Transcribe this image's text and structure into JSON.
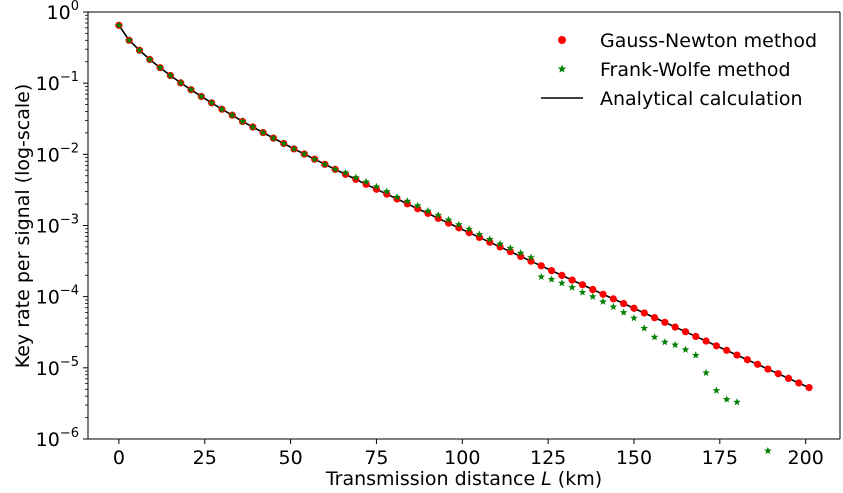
{
  "chart_data": {
    "type": "scatter",
    "xlabel": "Transmission distance L (km)",
    "xlabel_parts": {
      "before": "Transmission distance ",
      "italic": "L",
      "after": " (km)"
    },
    "ylabel": "Key rate per signal (log-scale)",
    "xlim": [
      -9,
      210
    ],
    "ylim": [
      1e-06,
      1
    ],
    "y_scale": "log",
    "x_ticks": [
      0,
      25,
      50,
      75,
      100,
      125,
      150,
      175,
      200
    ],
    "x_tick_labels": [
      "0",
      "25",
      "50",
      "75",
      "100",
      "125",
      "150",
      "175",
      "200"
    ],
    "y_ticks": [
      {
        "value": 1,
        "base": "10",
        "exp": "0"
      },
      {
        "value": 0.1,
        "base": "10",
        "exp": "−1"
      },
      {
        "value": 0.01,
        "base": "10",
        "exp": "−2"
      },
      {
        "value": 0.001,
        "base": "10",
        "exp": "−3"
      },
      {
        "value": 0.0001,
        "base": "10",
        "exp": "−4"
      },
      {
        "value": 1e-05,
        "base": "10",
        "exp": "−5"
      },
      {
        "value": 1e-06,
        "base": "10",
        "exp": "−6"
      }
    ],
    "grid": false,
    "legend_position": "top-right",
    "series": [
      {
        "name": "Gauss-Newton method",
        "marker": "circle",
        "color": "#ff0000",
        "x": [
          0,
          3,
          6,
          9,
          12,
          15,
          18,
          21,
          24,
          27,
          30,
          33,
          36,
          39,
          42,
          45,
          48,
          51,
          54,
          57,
          60,
          63,
          66,
          69,
          72,
          75,
          78,
          81,
          84,
          87,
          90,
          93,
          96,
          99,
          102,
          105,
          108,
          111,
          114,
          117,
          120,
          123,
          126,
          129,
          132,
          135,
          138,
          141,
          144,
          147,
          150,
          153,
          156,
          159,
          162,
          165,
          168,
          171,
          174,
          177,
          180,
          183,
          186,
          189,
          192,
          195,
          198,
          201
        ],
        "y": [
          0.65,
          0.4,
          0.29,
          0.215,
          0.165,
          0.128,
          0.101,
          0.081,
          0.065,
          0.053,
          0.043,
          0.0355,
          0.029,
          0.0242,
          0.0202,
          0.0169,
          0.0142,
          0.0119,
          0.0101,
          0.00854,
          0.00724,
          0.00615,
          0.00523,
          0.00445,
          0.00379,
          0.00323,
          0.00276,
          0.00236,
          0.00202,
          0.00172,
          0.00148,
          0.00126,
          0.00108,
          0.000927,
          0.000794,
          0.00068,
          0.000583,
          0.0005,
          0.000429,
          0.000368,
          0.000315,
          0.000271,
          0.000232,
          0.000199,
          0.000171,
          0.000147,
          0.000126,
          0.000108,
          9.31e-05,
          8e-05,
          6.87e-05,
          5.9e-05,
          5.07e-05,
          4.36e-05,
          3.74e-05,
          3.22e-05,
          2.76e-05,
          2.38e-05,
          2.04e-05,
          1.76e-05,
          1.51e-05,
          1.3e-05,
          1.12e-05,
          9.61e-06,
          8.27e-06,
          7.11e-06,
          6.12e-06,
          5.27e-06
        ]
      },
      {
        "name": "Frank-Wolfe method",
        "marker": "star",
        "color": "#008000",
        "x": [
          0,
          3,
          6,
          9,
          12,
          15,
          18,
          21,
          24,
          27,
          30,
          33,
          36,
          39,
          42,
          45,
          48,
          51,
          54,
          57,
          60,
          63,
          66,
          69,
          72,
          75,
          78,
          81,
          84,
          87,
          90,
          93,
          96,
          99,
          102,
          105,
          108,
          111,
          114,
          117,
          120,
          123,
          126,
          129,
          132,
          135,
          138,
          141,
          144,
          147,
          150,
          153,
          156,
          159,
          162,
          165,
          168,
          171,
          174,
          177,
          180,
          189
        ],
        "y": [
          0.65,
          0.4,
          0.29,
          0.215,
          0.165,
          0.128,
          0.101,
          0.081,
          0.065,
          0.053,
          0.043,
          0.0355,
          0.029,
          0.0242,
          0.0202,
          0.0169,
          0.0142,
          0.0119,
          0.0101,
          0.00854,
          0.00724,
          0.00615,
          0.0055,
          0.0047,
          0.0041,
          0.0035,
          0.003,
          0.0025,
          0.0022,
          0.0019,
          0.0016,
          0.0014,
          0.0012,
          0.00103,
          0.00089,
          0.00075,
          0.00064,
          0.00055,
          0.00048,
          0.00041,
          0.000355,
          0.00019,
          0.000175,
          0.000155,
          0.000135,
          0.000115,
          0.0001,
          8.5e-05,
          7.2e-05,
          6e-05,
          5e-05,
          3.6e-05,
          2.7e-05,
          2.3e-05,
          2.1e-05,
          1.8e-05,
          1.5e-05,
          8.5e-06,
          4.8e-06,
          3.6e-06,
          3.3e-06,
          6.8e-07
        ]
      },
      {
        "name": "Analytical calculation",
        "marker": "line",
        "color": "#000000",
        "x": [
          0,
          3,
          6,
          9,
          12,
          15,
          18,
          21,
          24,
          27,
          30,
          33,
          36,
          39,
          42,
          45,
          48,
          51,
          54,
          57,
          60,
          63,
          66,
          69,
          72,
          75,
          78,
          81,
          84,
          87,
          90,
          93,
          96,
          99,
          102,
          105,
          108,
          111,
          114,
          117,
          120,
          123,
          126,
          129,
          132,
          135,
          138,
          141,
          144,
          147,
          150,
          153,
          156,
          159,
          162,
          165,
          168,
          171,
          174,
          177,
          180,
          183,
          186,
          189,
          192,
          195,
          198,
          201
        ],
        "y": [
          0.65,
          0.4,
          0.29,
          0.215,
          0.165,
          0.128,
          0.101,
          0.081,
          0.065,
          0.053,
          0.043,
          0.0355,
          0.029,
          0.0242,
          0.0202,
          0.0169,
          0.0142,
          0.0119,
          0.0101,
          0.00854,
          0.00724,
          0.00615,
          0.00523,
          0.00445,
          0.00379,
          0.00323,
          0.00276,
          0.00236,
          0.00202,
          0.00172,
          0.00148,
          0.00126,
          0.00108,
          0.000927,
          0.000794,
          0.00068,
          0.000583,
          0.0005,
          0.000429,
          0.000368,
          0.000315,
          0.000271,
          0.000232,
          0.000199,
          0.000171,
          0.000147,
          0.000126,
          0.000108,
          9.31e-05,
          8e-05,
          6.87e-05,
          5.9e-05,
          5.07e-05,
          4.36e-05,
          3.74e-05,
          3.22e-05,
          2.76e-05,
          2.38e-05,
          2.04e-05,
          1.76e-05,
          1.51e-05,
          1.3e-05,
          1.12e-05,
          9.61e-06,
          8.27e-06,
          7.11e-06,
          6.12e-06,
          5.27e-06
        ]
      }
    ]
  }
}
